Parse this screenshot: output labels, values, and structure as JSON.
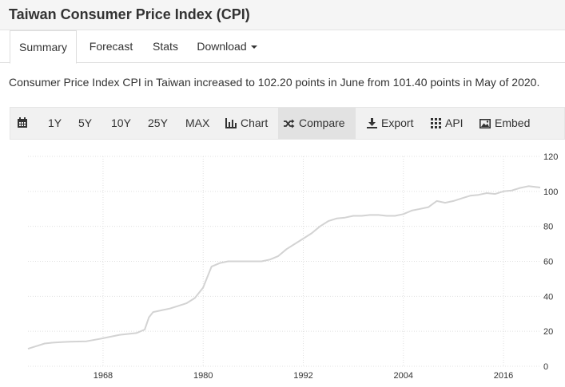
{
  "page": {
    "title": "Taiwan Consumer Price Index (CPI)"
  },
  "tabs": [
    {
      "label": "Summary",
      "active": true
    },
    {
      "label": "Forecast"
    },
    {
      "label": "Stats"
    },
    {
      "label": "Download"
    }
  ],
  "summary_text": "Consumer Price Index CPI in Taiwan increased to 102.20 points in June from 101.40 points in May of 2020.",
  "toolbar": {
    "range_buttons": [
      "1Y",
      "5Y",
      "10Y",
      "25Y",
      "MAX"
    ],
    "chart_label": "Chart",
    "compare_label": "Compare",
    "export_label": "Export",
    "api_label": "API",
    "embed_label": "Embed",
    "icons": [
      "calendar-icon",
      "bar-chart-icon",
      "shuffle-icon",
      "download-icon",
      "grid-icon",
      "image-icon"
    ]
  },
  "chart_data": {
    "type": "line",
    "title": "",
    "xlabel": "",
    "ylabel": "",
    "x_ticks": [
      "1968",
      "1980",
      "1992",
      "2004",
      "2016"
    ],
    "y_ticks": [
      "0",
      "20",
      "40",
      "60",
      "80",
      "100",
      "120"
    ],
    "xlim": [
      1959,
      2020.5
    ],
    "ylim": [
      0,
      120
    ],
    "grid": true,
    "line_color": "#d3d3d3",
    "series": [
      {
        "name": "",
        "x": [
          1959,
          1960,
          1961,
          1962,
          1963,
          1964,
          1966,
          1968,
          1970,
          1971,
          1972,
          1973,
          1973.5,
          1974,
          1975,
          1976,
          1977,
          1978,
          1979,
          1980,
          1980.5,
          1981,
          1982,
          1983,
          1985,
          1987,
          1988,
          1989,
          1990,
          1991,
          1992,
          1993,
          1994,
          1995,
          1996,
          1997,
          1998,
          1999,
          2000,
          2001,
          2002,
          2003,
          2004,
          2005,
          2006,
          2007,
          2008,
          2009,
          2010,
          2011,
          2012,
          2013,
          2014,
          2015,
          2016,
          2017,
          2018,
          2019,
          2020.4
        ],
        "values": [
          10,
          11.5,
          13,
          13.5,
          13.8,
          14,
          14.3,
          16,
          18,
          18.5,
          19,
          21,
          28,
          31,
          32,
          33,
          34.5,
          36,
          39,
          45,
          51,
          57,
          59,
          60,
          60,
          60,
          61,
          63,
          67,
          70,
          73,
          76,
          80,
          83,
          84.5,
          85,
          86,
          86,
          86.5,
          86.5,
          86,
          86,
          87,
          89,
          90,
          91,
          94.5,
          93.5,
          94.5,
          96,
          97.5,
          98,
          99,
          98.5,
          100,
          100.5,
          102,
          103,
          102.2
        ]
      }
    ]
  }
}
